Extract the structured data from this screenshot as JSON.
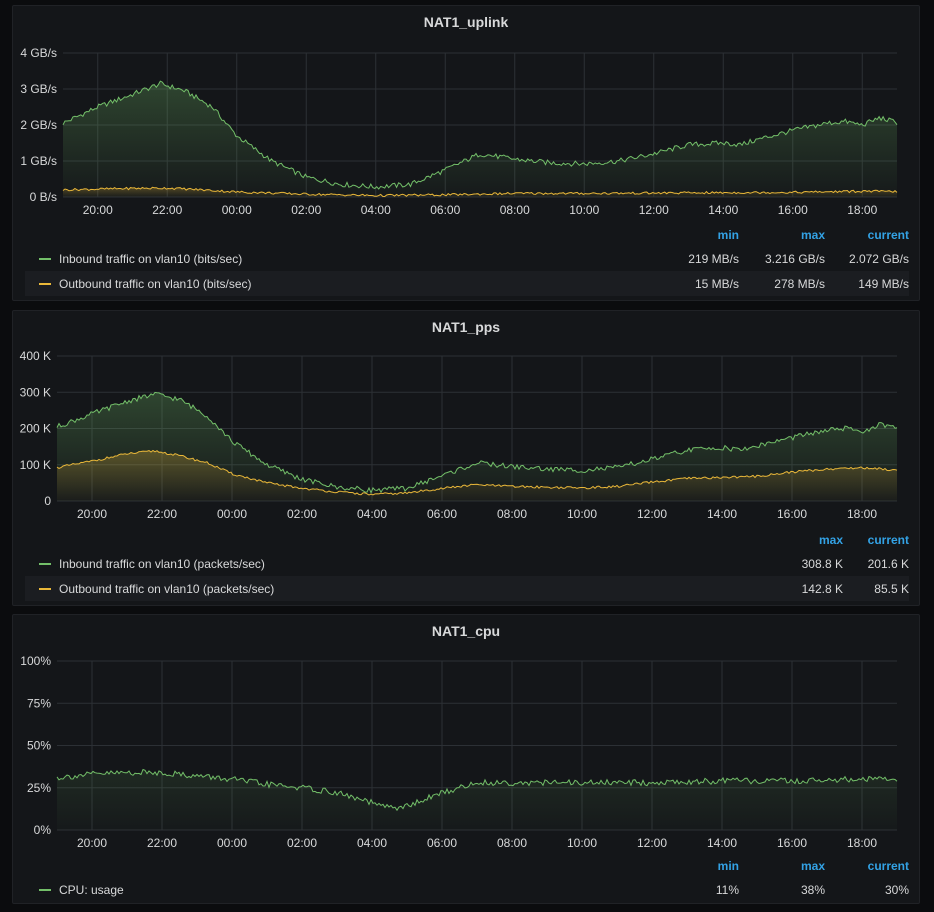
{
  "colors": {
    "green": "#73bf69",
    "yellow": "#eab839",
    "axis": "#d8d9da",
    "grid": "#2c3035",
    "legend_head": "#33a2e5"
  },
  "x_ticks": [
    "20:00",
    "22:00",
    "00:00",
    "02:00",
    "04:00",
    "06:00",
    "08:00",
    "10:00",
    "12:00",
    "14:00",
    "16:00",
    "18:00"
  ],
  "panels": [
    {
      "title": "NAT1_uplink",
      "legend_columns": [
        "min",
        "max",
        "current"
      ],
      "legend_rows": [
        {
          "label": "Inbound traffic on vlan10 (bits/sec)",
          "values": [
            "219 MB/s",
            "3.216 GB/s",
            "2.072 GB/s"
          ],
          "color": "#73bf69"
        },
        {
          "label": "Outbound traffic on vlan10 (bits/sec)",
          "values": [
            "15 MB/s",
            "278 MB/s",
            "149 MB/s"
          ],
          "color": "#eab839"
        }
      ]
    },
    {
      "title": "NAT1_pps",
      "legend_columns": [
        "max",
        "current"
      ],
      "legend_rows": [
        {
          "label": "Inbound traffic on vlan10 (packets/sec)",
          "values": [
            "308.8 K",
            "201.6 K"
          ],
          "color": "#73bf69"
        },
        {
          "label": "Outbound traffic on vlan10 (packets/sec)",
          "values": [
            "142.8 K",
            "85.5 K"
          ],
          "color": "#eab839"
        }
      ]
    },
    {
      "title": "NAT1_cpu",
      "legend_columns": [
        "min",
        "max",
        "current"
      ],
      "legend_rows": [
        {
          "label": "CPU: usage",
          "values": [
            "11%",
            "38%",
            "30%"
          ],
          "color": "#73bf69"
        }
      ]
    }
  ],
  "chart_data": [
    {
      "type": "area",
      "title": "NAT1_uplink",
      "x_unit": "hour of day",
      "x_start": 19.0,
      "x_end": 43.0,
      "y_ticks": [
        "0 B/s",
        "1 GB/s",
        "2 GB/s",
        "3 GB/s",
        "4 GB/s"
      ],
      "ylim": [
        0,
        4
      ],
      "y_unit": "GB/s",
      "grid": true,
      "series": [
        {
          "name": "Inbound traffic on vlan10 (bits/sec)",
          "color": "#73bf69",
          "x": [
            19.0,
            20.0,
            21.0,
            21.8,
            22.5,
            23.3,
            24.0,
            25.0,
            26.0,
            27.0,
            28.0,
            29.0,
            30.0,
            31.0,
            32.0,
            33.0,
            34.0,
            35.0,
            36.0,
            37.0,
            38.0,
            38.5,
            39.0,
            40.0,
            41.0,
            41.5,
            42.0,
            42.5,
            43.0
          ],
          "values": [
            2.05,
            2.5,
            2.85,
            3.15,
            2.95,
            2.5,
            1.7,
            1.0,
            0.55,
            0.35,
            0.28,
            0.35,
            0.75,
            1.2,
            1.05,
            0.95,
            0.92,
            1.0,
            1.2,
            1.45,
            1.5,
            1.45,
            1.6,
            1.85,
            2.05,
            2.1,
            2.0,
            2.2,
            2.07
          ]
        },
        {
          "name": "Outbound traffic on vlan10 (bits/sec)",
          "color": "#eab839",
          "x": [
            19.0,
            21.0,
            22.0,
            23.0,
            24.0,
            26.0,
            28.0,
            30.0,
            32.0,
            34.0,
            36.0,
            38.0,
            40.0,
            42.0,
            43.0
          ],
          "values": [
            0.2,
            0.24,
            0.25,
            0.2,
            0.14,
            0.08,
            0.04,
            0.06,
            0.1,
            0.1,
            0.11,
            0.12,
            0.13,
            0.16,
            0.15
          ]
        }
      ]
    },
    {
      "type": "area",
      "title": "NAT1_pps",
      "x_unit": "hour of day",
      "x_start": 19.0,
      "x_end": 43.0,
      "y_ticks": [
        "0",
        "100 K",
        "200 K",
        "300 K",
        "400 K"
      ],
      "ylim": [
        0,
        400
      ],
      "y_unit": "K",
      "grid": true,
      "series": [
        {
          "name": "Inbound traffic on vlan10 (packets/sec)",
          "color": "#73bf69",
          "x": [
            19.0,
            20.0,
            21.0,
            21.8,
            22.5,
            23.3,
            24.0,
            25.0,
            26.0,
            27.0,
            28.0,
            29.0,
            30.0,
            31.0,
            32.0,
            33.0,
            34.0,
            35.0,
            36.0,
            37.0,
            38.0,
            38.5,
            39.0,
            40.0,
            41.0,
            41.5,
            42.0,
            42.5,
            43.0
          ],
          "values": [
            205,
            240,
            275,
            295,
            280,
            235,
            165,
            100,
            60,
            38,
            30,
            35,
            70,
            105,
            95,
            88,
            85,
            92,
            115,
            140,
            148,
            140,
            152,
            175,
            195,
            200,
            192,
            210,
            201.6
          ]
        },
        {
          "name": "Outbound traffic on vlan10 (packets/sec)",
          "color": "#eab839",
          "x": [
            19.0,
            20.0,
            21.0,
            21.8,
            22.5,
            23.3,
            24.0,
            25.0,
            26.0,
            27.0,
            28.0,
            29.0,
            30.0,
            31.0,
            32.0,
            33.0,
            34.0,
            35.0,
            36.0,
            37.0,
            38.0,
            39.0,
            40.0,
            41.0,
            42.0,
            43.0
          ],
          "values": [
            92,
            110,
            130,
            138,
            125,
            105,
            75,
            50,
            35,
            25,
            18,
            22,
            35,
            45,
            40,
            38,
            36,
            40,
            52,
            62,
            65,
            68,
            80,
            88,
            92,
            85.5
          ]
        }
      ]
    },
    {
      "type": "line",
      "title": "NAT1_cpu",
      "x_unit": "hour of day",
      "x_start": 19.0,
      "x_end": 43.0,
      "y_ticks": [
        "0%",
        "25%",
        "50%",
        "75%",
        "100%"
      ],
      "ylim": [
        0,
        100
      ],
      "y_unit": "%",
      "grid": true,
      "series": [
        {
          "name": "CPU: usage",
          "color": "#73bf69",
          "x": [
            19.0,
            20.0,
            21.0,
            22.0,
            23.0,
            24.0,
            25.0,
            26.0,
            27.0,
            28.0,
            28.5,
            29.0,
            30.0,
            31.0,
            32.0,
            34.0,
            36.0,
            38.0,
            40.0,
            42.0,
            43.0
          ],
          "values": [
            31,
            33,
            34,
            34,
            32,
            30,
            27,
            25,
            22,
            16,
            13,
            14,
            22,
            28,
            28,
            28,
            28,
            29,
            29,
            30,
            30
          ]
        }
      ]
    }
  ]
}
